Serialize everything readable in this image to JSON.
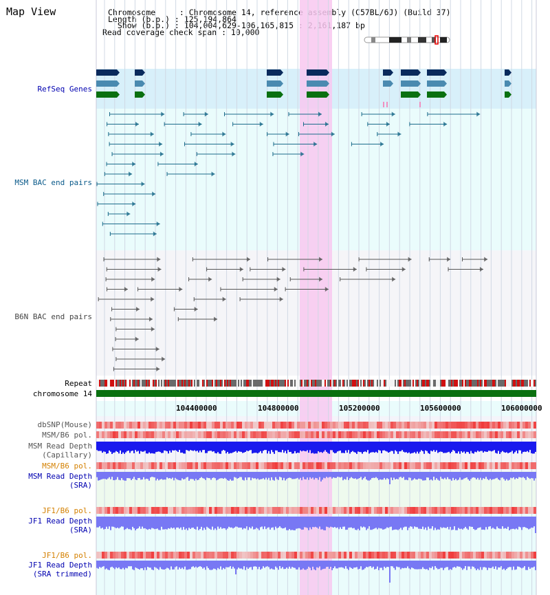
{
  "page": {
    "title": "Map View"
  },
  "info": {
    "chromosome_line": "Chromosome     : Chromosome 14, reference assembly (C57BL/6J) (Build 37)",
    "length_line": "Length (b.p.) : 125,194,864",
    "show_line": "  Show (b.p.) : 104,004,629-106,165,815 : 2,161,187 bp",
    "coverage_line": "Read coverage check span : 10,000"
  },
  "tracks": {
    "refseq": "RefSeq Genes",
    "msm_bac": "MSM BAC end pairs",
    "b6n_bac": "B6N BAC end pairs",
    "repeat": "Repeat",
    "chromosome": "chromosome 14",
    "dbsnp": "dbSNP(Mouse)",
    "msm_pol_1": "MSM/B6 pol.",
    "msm_depth_cap_1": "MSM Read Depth",
    "msm_depth_cap_2": "(Capillary)",
    "msm_pol_2": "MSM/B6 pol.",
    "msm_depth_sra_1": "MSM Read Depth",
    "msm_depth_sra_2": "(SRA)",
    "jf1_pol_1": "JF1/B6 pol.",
    "jf1_depth_sra_1": "JF1 Read Depth",
    "jf1_depth_sra_2": "(SRA)",
    "jf1_pol_2": "JF1/B6 pol.",
    "jf1_depth_trim_1": "JF1 Read Depth",
    "jf1_depth_trim_2": "(SRA trimmed)"
  },
  "axis": {
    "ticks": [
      "104400000",
      "104800000",
      "105200000",
      "105600000",
      "106000000"
    ]
  },
  "colors": {
    "gene_dark": "#0a2a5c",
    "gene_mid": "#4a8ab0",
    "gene_green": "#0a7010",
    "msm_line": "#1a6a8a",
    "b6n_line": "#555555",
    "chrom_bar": "#0a7010",
    "highlight": "#f8c8f0",
    "depth_capillary": "#1a1aee",
    "depth_sra": "#7878f4"
  }
}
